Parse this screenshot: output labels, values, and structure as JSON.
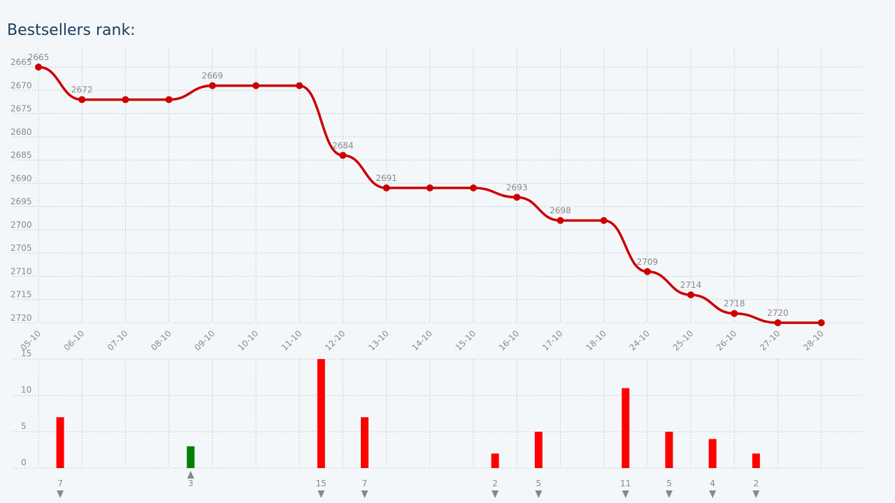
{
  "chart_data": [
    {
      "type": "line",
      "title": "Bestsellers rank:",
      "categories": [
        "05-10",
        "06-10",
        "07-10",
        "08-10",
        "09-10",
        "10-10",
        "11-10",
        "12-10",
        "13-10",
        "14-10",
        "15-10",
        "16-10",
        "17-10",
        "18-10",
        "24-10",
        "25-10",
        "26-10",
        "27-10",
        "28-10"
      ],
      "values": [
        2665,
        2672,
        2672,
        2672,
        2669,
        2669,
        2669,
        2684,
        2691,
        2691,
        2691,
        2693,
        2698,
        2698,
        2709,
        2714,
        2718,
        2720,
        2720
      ],
      "color": "#cc0000",
      "ylim": [
        2665,
        2720
      ],
      "y_inverted": true,
      "yticks": [
        2665,
        2670,
        2675,
        2680,
        2685,
        2690,
        2695,
        2700,
        2705,
        2710,
        2715,
        2720
      ],
      "grid": true
    },
    {
      "type": "bar",
      "values": [
        7,
        null,
        null,
        3,
        null,
        null,
        15,
        7,
        null,
        null,
        2,
        5,
        null,
        11,
        5,
        4,
        2,
        null
      ],
      "directions": [
        "down",
        null,
        null,
        "up",
        null,
        null,
        "down",
        "down",
        null,
        null,
        "down",
        "down",
        null,
        "down",
        "down",
        "down",
        "down",
        null
      ],
      "colors": {
        "down": "#ff0000",
        "up": "#008000"
      },
      "ylim": [
        0,
        15
      ],
      "yticks": [
        0,
        5,
        10,
        15
      ],
      "grid": true
    }
  ]
}
